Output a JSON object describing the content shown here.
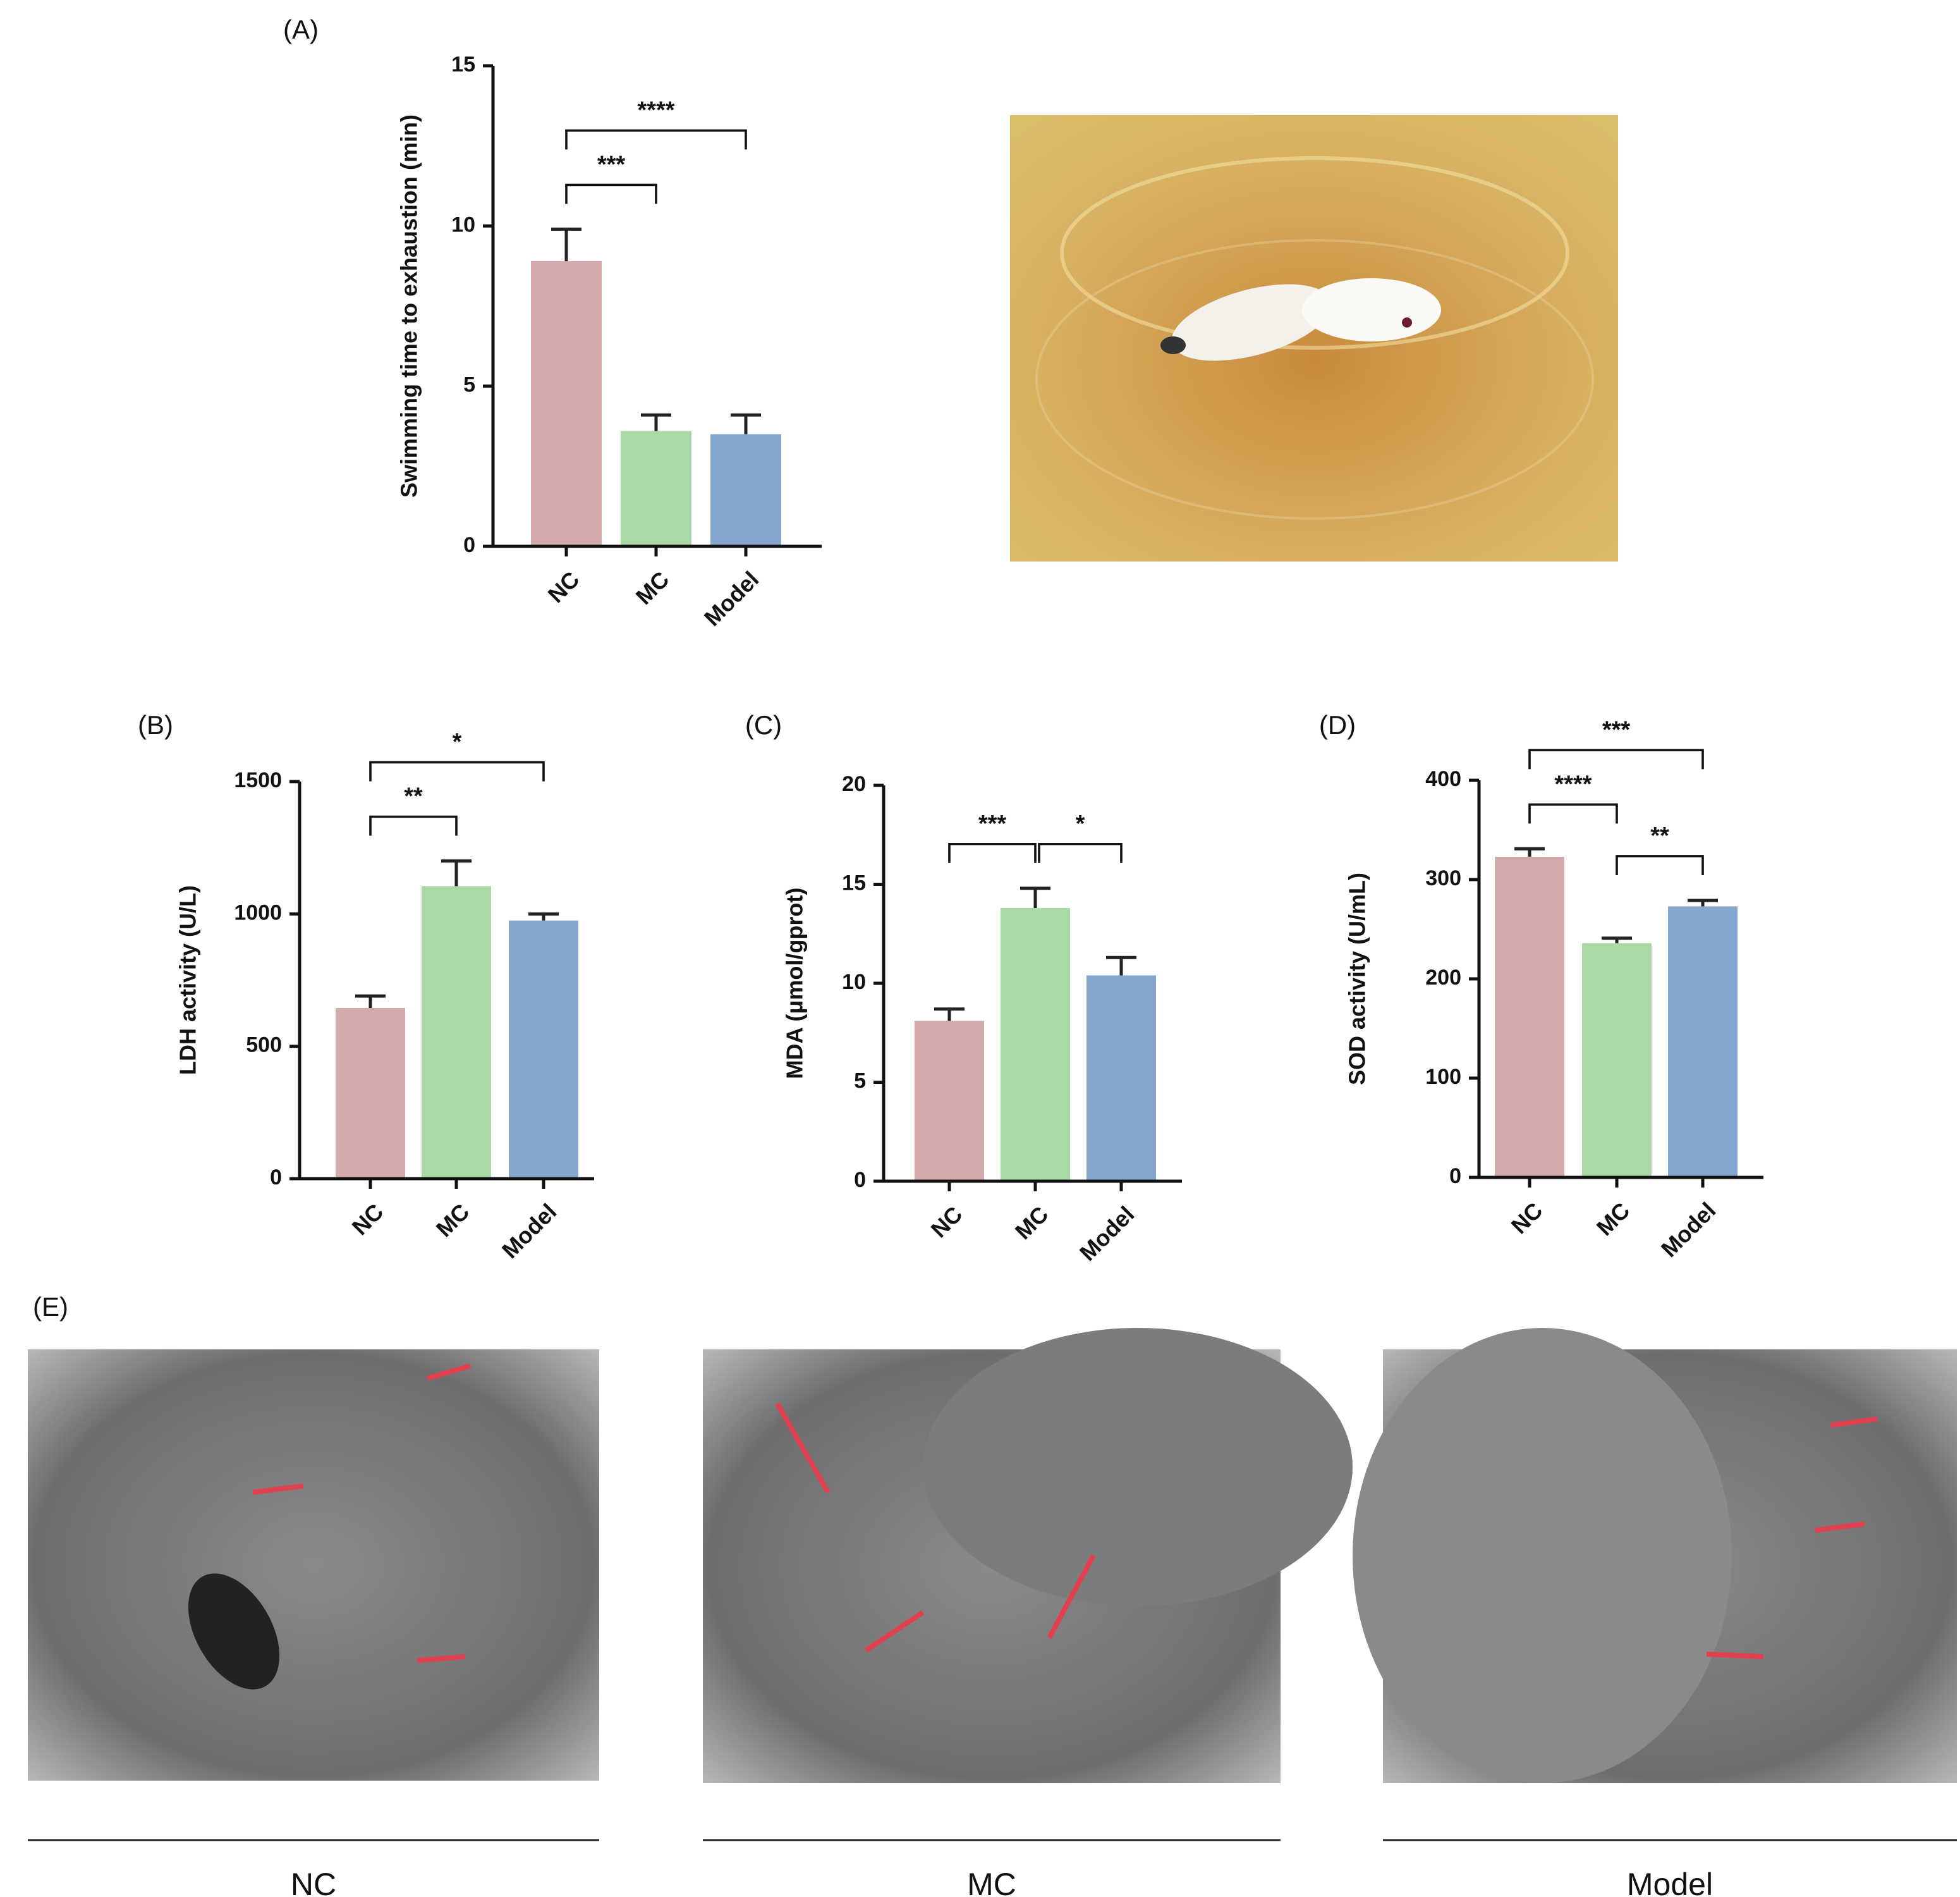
{
  "chart_data": [
    {
      "type": "bar",
      "panel": "(A)",
      "ylabel": "Swimming time to exhaustion (min)",
      "categories": [
        "NC",
        "MC",
        "Model"
      ],
      "values": [
        8.9,
        3.6,
        3.5
      ],
      "errors": [
        1.0,
        0.5,
        0.6
      ],
      "colors": [
        "#d4a9aa",
        "#a9d9a5",
        "#85a7cd"
      ],
      "ylim": [
        0,
        15
      ],
      "yticks": [
        0,
        5,
        10,
        15
      ],
      "annotations": [
        {
          "pair": [
            "NC",
            "MC"
          ],
          "label": "***"
        },
        {
          "pair": [
            "NC",
            "Model"
          ],
          "label": "****"
        }
      ]
    },
    {
      "type": "bar",
      "panel": "(B)",
      "ylabel": "LDH activity (U/L)",
      "categories": [
        "NC",
        "MC",
        "Model"
      ],
      "values": [
        645,
        1105,
        975
      ],
      "errors": [
        45,
        95,
        25
      ],
      "colors": [
        "#d4a9aa",
        "#a9d9a5",
        "#85a7cd"
      ],
      "ylim": [
        0,
        1500
      ],
      "yticks": [
        0,
        500,
        1000,
        1500
      ],
      "annotations": [
        {
          "pair": [
            "NC",
            "MC"
          ],
          "label": "**"
        },
        {
          "pair": [
            "NC",
            "Model"
          ],
          "label": "*"
        }
      ]
    },
    {
      "type": "bar",
      "panel": "(C)",
      "ylabel": "MDA (μmol/gprot)",
      "categories": [
        "NC",
        "MC",
        "Model"
      ],
      "values": [
        8.1,
        13.8,
        10.4
      ],
      "errors": [
        0.6,
        1.0,
        0.9
      ],
      "colors": [
        "#d4a9aa",
        "#a9d9a5",
        "#85a7cd"
      ],
      "ylim": [
        0,
        20
      ],
      "yticks": [
        0,
        5,
        10,
        15,
        20
      ],
      "annotations": [
        {
          "pair": [
            "NC",
            "MC"
          ],
          "label": "***"
        },
        {
          "pair": [
            "MC",
            "Model"
          ],
          "label": "*"
        }
      ]
    },
    {
      "type": "bar",
      "panel": "(D)",
      "ylabel": "SOD activity (U/mL)",
      "categories": [
        "NC",
        "MC",
        "Model"
      ],
      "values": [
        323,
        236,
        273
      ],
      "errors": [
        8,
        5,
        6
      ],
      "colors": [
        "#d4a9aa",
        "#a9d9a5",
        "#85a7cd"
      ],
      "ylim": [
        0,
        400
      ],
      "yticks": [
        0,
        100,
        200,
        300,
        400
      ],
      "annotations": [
        {
          "pair": [
            "NC",
            "MC"
          ],
          "label": "****"
        },
        {
          "pair": [
            "MC",
            "Model"
          ],
          "label": "**"
        },
        {
          "pair": [
            "NC",
            "Model"
          ],
          "label": "***"
        }
      ]
    }
  ],
  "panel_e": {
    "label": "(E)",
    "images": [
      "NC",
      "MC",
      "Model"
    ]
  }
}
